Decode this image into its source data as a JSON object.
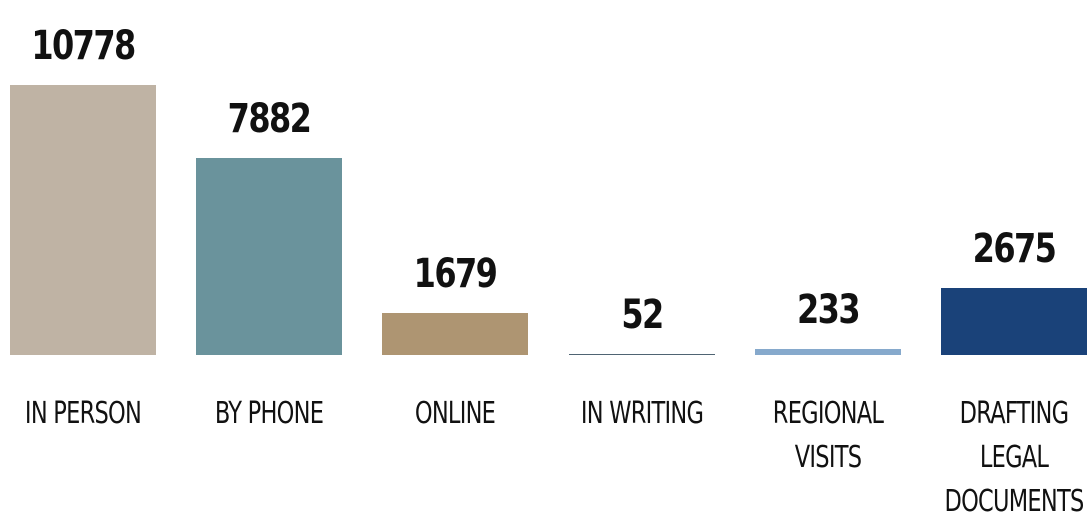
{
  "chart_data": {
    "type": "bar",
    "categories": [
      "IN PERSON",
      "BY PHONE",
      "ONLINE",
      "IN WRITING",
      "REGIONAL VISITS",
      "DRAFTING LEGAL DOCUMENTS"
    ],
    "values": [
      10778,
      7882,
      1679,
      52,
      233,
      2675
    ],
    "colors": [
      "#bfb3a4",
      "#6a939c",
      "#ae9572",
      "#4f6473",
      "#86a9cc",
      "#1a4279"
    ]
  }
}
